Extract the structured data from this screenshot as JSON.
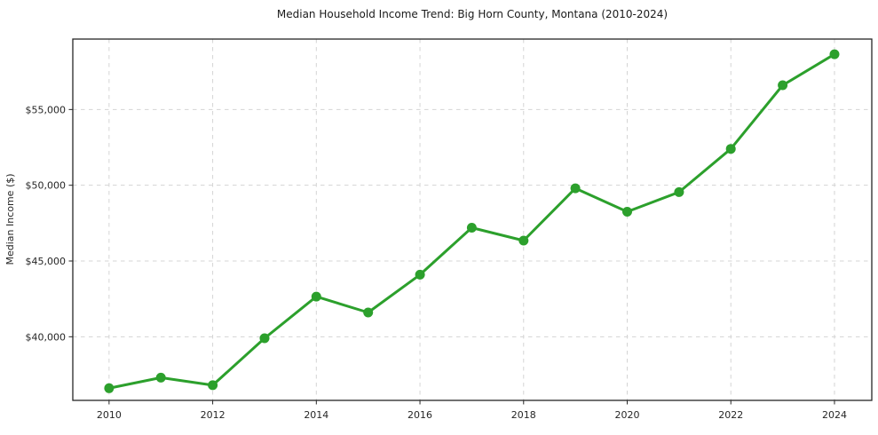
{
  "chart_data": {
    "type": "line",
    "title": "Median Household Income Trend: Big Horn County, Montana (2010-2024)",
    "xlabel": "",
    "ylabel": "Median Income ($)",
    "x": [
      2010,
      2011,
      2012,
      2013,
      2014,
      2015,
      2016,
      2017,
      2018,
      2019,
      2020,
      2021,
      2022,
      2023,
      2024
    ],
    "values": [
      36600,
      37300,
      36800,
      39900,
      42650,
      41600,
      44100,
      47200,
      46350,
      49800,
      48250,
      49550,
      52400,
      56600,
      58650
    ],
    "xlim": [
      2009.3,
      2024.72
    ],
    "ylim": [
      35800,
      59650
    ],
    "xticks": [
      2010,
      2012,
      2014,
      2016,
      2018,
      2020,
      2022,
      2024
    ],
    "xtick_labels": [
      "2010",
      "2012",
      "2014",
      "2016",
      "2018",
      "2020",
      "2022",
      "2024"
    ],
    "yticks": [
      40000,
      45000,
      50000,
      55000
    ],
    "ytick_labels": [
      "$40,000",
      "$45,000",
      "$50,000",
      "$55,000"
    ],
    "grid": true,
    "grid_style": "dashed",
    "legend": "none",
    "marker": "circle",
    "line_color": "#2ca02c",
    "marker_color": "#2ca02c",
    "grid_color": "#d4d4d4",
    "axis_color": "#262626",
    "background_color": "#ffffff"
  }
}
